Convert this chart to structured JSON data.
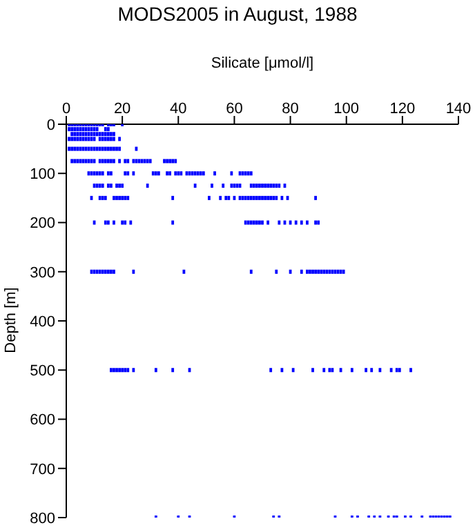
{
  "chart_data": {
    "type": "scatter",
    "title": "MODS2005 in August, 1988",
    "xlabel": "Silicate [μmol/l]",
    "ylabel": "Depth [m]",
    "xlim": [
      0,
      140
    ],
    "xticks": [
      0,
      20,
      40,
      60,
      80,
      100,
      120,
      140
    ],
    "ylim": [
      800,
      0
    ],
    "yticks": [
      0,
      100,
      200,
      300,
      400,
      500,
      600,
      700,
      800
    ],
    "grid": false,
    "legend": false,
    "marker": "square",
    "series": [
      {
        "color": "#0000ff",
        "x": [
          1,
          2,
          3,
          4,
          5,
          6,
          7,
          8,
          9,
          10,
          11,
          12,
          13,
          15,
          16,
          17,
          20
        ],
        "values": [
          0,
          0,
          0,
          0,
          0,
          0,
          0,
          0,
          0,
          0,
          0,
          0,
          0,
          0,
          0,
          0,
          0
        ]
      },
      {
        "color": "#0000ff",
        "x": [
          1,
          2,
          3,
          4,
          5,
          6,
          7,
          8,
          9,
          10,
          11,
          14,
          15
        ],
        "values": [
          10,
          10,
          10,
          10,
          10,
          10,
          10,
          10,
          10,
          10,
          10,
          10,
          10
        ]
      },
      {
        "color": "#0000ff",
        "x": [
          2,
          3,
          4,
          5,
          6,
          7,
          8,
          9,
          10,
          11,
          12,
          13,
          14,
          15,
          16,
          17
        ],
        "values": [
          20,
          20,
          20,
          20,
          20,
          20,
          20,
          20,
          20,
          20,
          20,
          20,
          20,
          20,
          20,
          20
        ]
      },
      {
        "color": "#0000ff",
        "x": [
          1,
          2,
          3,
          4,
          5,
          6,
          7,
          8,
          9,
          10,
          12,
          13,
          14,
          15,
          16,
          17,
          19
        ],
        "values": [
          30,
          30,
          30,
          30,
          30,
          30,
          30,
          30,
          30,
          30,
          30,
          30,
          30,
          30,
          30,
          30,
          30
        ]
      },
      {
        "color": "#0000ff",
        "x": [
          1,
          2,
          3,
          4,
          5,
          6,
          7,
          8,
          9,
          10,
          11,
          12,
          13,
          14,
          15,
          16,
          17,
          18,
          19,
          25
        ],
        "values": [
          50,
          50,
          50,
          50,
          50,
          50,
          50,
          50,
          50,
          50,
          50,
          50,
          50,
          50,
          50,
          50,
          50,
          50,
          50,
          50
        ]
      },
      {
        "color": "#0000ff",
        "x": [
          2,
          3,
          4,
          5,
          6,
          7,
          8,
          9,
          10,
          12,
          13,
          14,
          15,
          16,
          17,
          19,
          21,
          22,
          24,
          25,
          26,
          27,
          28,
          29,
          30,
          35,
          36,
          37,
          38,
          39
        ],
        "values": [
          75,
          75,
          75,
          75,
          75,
          75,
          75,
          75,
          75,
          75,
          75,
          75,
          75,
          75,
          75,
          75,
          75,
          75,
          75,
          75,
          75,
          75,
          75,
          75,
          75,
          75,
          75,
          75,
          75,
          75
        ]
      },
      {
        "color": "#0000ff",
        "x": [
          8,
          9,
          10,
          11,
          12,
          13,
          15,
          16,
          21,
          22,
          24,
          31,
          32,
          33,
          36,
          37,
          39,
          40,
          41,
          43,
          44,
          45,
          46,
          47,
          48,
          49,
          53,
          59,
          62,
          63,
          64,
          65,
          66
        ],
        "values": [
          100,
          100,
          100,
          100,
          100,
          100,
          100,
          100,
          100,
          100,
          100,
          100,
          100,
          100,
          100,
          100,
          100,
          100,
          100,
          100,
          100,
          100,
          100,
          100,
          100,
          100,
          100,
          100,
          100,
          100,
          100,
          100,
          100
        ]
      },
      {
        "color": "#0000ff",
        "x": [
          10,
          11,
          12,
          13,
          15,
          16,
          18,
          19,
          20,
          29,
          46,
          52,
          56,
          59,
          60,
          61,
          62,
          66,
          67,
          68,
          69,
          70,
          71,
          72,
          73,
          74,
          75,
          76,
          78
        ],
        "values": [
          125,
          125,
          125,
          125,
          125,
          125,
          125,
          125,
          125,
          125,
          125,
          125,
          125,
          125,
          125,
          125,
          125,
          125,
          125,
          125,
          125,
          125,
          125,
          125,
          125,
          125,
          125,
          125,
          125
        ]
      },
      {
        "color": "#0000ff",
        "x": [
          9,
          12,
          13,
          14,
          17,
          18,
          19,
          20,
          21,
          22,
          38,
          51,
          55,
          57,
          58,
          60,
          62,
          63,
          64,
          65,
          66,
          67,
          68,
          69,
          70,
          71,
          72,
          73,
          74,
          75,
          77,
          79,
          89
        ],
        "values": [
          150,
          150,
          150,
          150,
          150,
          150,
          150,
          150,
          150,
          150,
          150,
          150,
          150,
          150,
          150,
          150,
          150,
          150,
          150,
          150,
          150,
          150,
          150,
          150,
          150,
          150,
          150,
          150,
          150,
          150,
          150,
          150,
          150
        ]
      },
      {
        "color": "#0000ff",
        "x": [
          10,
          14,
          15,
          17,
          20,
          21,
          23,
          38,
          64,
          65,
          66,
          67,
          68,
          69,
          70,
          72,
          76,
          78,
          80,
          82,
          84,
          86,
          89,
          90
        ],
        "values": [
          200,
          200,
          200,
          200,
          200,
          200,
          200,
          200,
          200,
          200,
          200,
          200,
          200,
          200,
          200,
          200,
          200,
          200,
          200,
          200,
          200,
          200,
          200,
          200
        ]
      },
      {
        "color": "#0000ff",
        "x": [
          9,
          10,
          11,
          12,
          13,
          14,
          15,
          16,
          17,
          24,
          42,
          66,
          75,
          80,
          84,
          86,
          87,
          88,
          89,
          90,
          91,
          92,
          93,
          94,
          95,
          96,
          97,
          98,
          99
        ],
        "values": [
          300,
          300,
          300,
          300,
          300,
          300,
          300,
          300,
          300,
          300,
          300,
          300,
          300,
          300,
          300,
          300,
          300,
          300,
          300,
          300,
          300,
          300,
          300,
          300,
          300,
          300,
          300,
          300,
          300
        ]
      },
      {
        "color": "#0000ff",
        "x": [
          16,
          17,
          18,
          19,
          20,
          21,
          22,
          24,
          32,
          38,
          44,
          73,
          77,
          81,
          88,
          92,
          94,
          95,
          98,
          102,
          107,
          109,
          112,
          116,
          118,
          119,
          123
        ],
        "values": [
          500,
          500,
          500,
          500,
          500,
          500,
          500,
          500,
          500,
          500,
          500,
          500,
          500,
          500,
          500,
          500,
          500,
          500,
          500,
          500,
          500,
          500,
          500,
          500,
          500,
          500,
          500
        ]
      },
      {
        "color": "#0000ff",
        "x": [
          32,
          40,
          44,
          60,
          74,
          76,
          96,
          102,
          104,
          108,
          110,
          112,
          115,
          117,
          118,
          121,
          123,
          127,
          130,
          131,
          132,
          133,
          134,
          135,
          136,
          137
        ],
        "values": [
          800,
          800,
          800,
          800,
          800,
          800,
          800,
          800,
          800,
          800,
          800,
          800,
          800,
          800,
          800,
          800,
          800,
          800,
          800,
          800,
          800,
          800,
          800,
          800,
          800,
          800
        ]
      }
    ]
  }
}
